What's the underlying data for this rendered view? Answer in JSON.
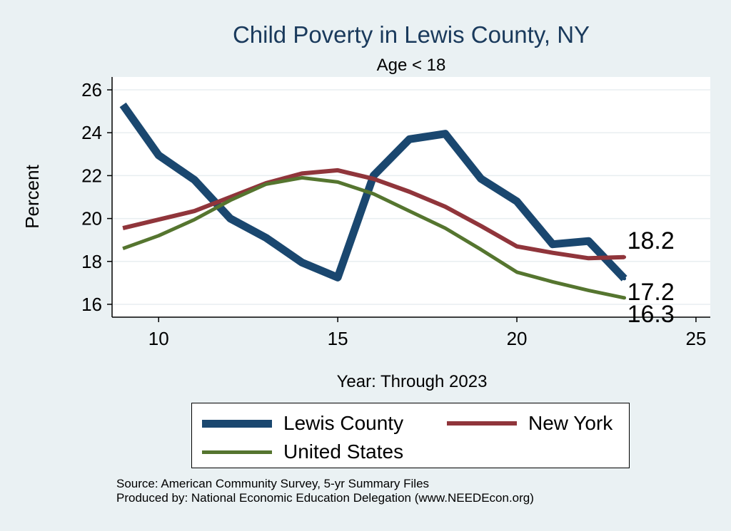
{
  "chart_data": {
    "type": "line",
    "title": "Child Poverty in Lewis County, NY",
    "subtitle": "Age < 18",
    "xlabel": "Year: Through 2023",
    "ylabel": "Percent",
    "xlim": [
      8.7,
      25.4
    ],
    "ylim": [
      15.4,
      26.6
    ],
    "xticks": [
      10,
      15,
      20,
      25
    ],
    "yticks": [
      16,
      18,
      20,
      22,
      24,
      26
    ],
    "grid": true,
    "x": [
      9,
      10,
      11,
      12,
      13,
      14,
      15,
      16,
      17,
      18,
      19,
      20,
      21,
      22,
      23
    ],
    "series": [
      {
        "name": "Lewis County",
        "color": "#1a476f",
        "width": 11,
        "values": [
          25.3,
          22.95,
          21.8,
          20.0,
          19.1,
          17.95,
          17.25,
          22.0,
          23.7,
          23.95,
          21.85,
          20.8,
          18.8,
          18.95,
          17.2
        ]
      },
      {
        "name": "New York",
        "color": "#90353b",
        "width": 6,
        "values": [
          19.55,
          19.95,
          20.35,
          21.0,
          21.65,
          22.1,
          22.25,
          21.85,
          21.25,
          20.55,
          19.65,
          18.7,
          18.4,
          18.15,
          18.2
        ]
      },
      {
        "name": "United States",
        "color": "#55752f",
        "width": 5,
        "values": [
          18.6,
          19.2,
          19.95,
          20.85,
          21.6,
          21.9,
          21.7,
          21.15,
          20.35,
          19.55,
          18.55,
          17.5,
          17.05,
          16.65,
          16.3
        ]
      }
    ],
    "end_labels": [
      {
        "series": "New York",
        "text": "18.2"
      },
      {
        "series": "Lewis County",
        "text": "17.2"
      },
      {
        "series": "United States",
        "text": "16.3"
      }
    ],
    "legend_position": "bottom"
  },
  "legend": {
    "items": [
      {
        "label": "Lewis County",
        "color": "#1a476f"
      },
      {
        "label": "New York",
        "color": "#90353b"
      },
      {
        "label": "United States",
        "color": "#55752f"
      }
    ]
  },
  "footer": {
    "source": "Source: American Community Survey, 5-yr Summary Files",
    "produced": "Produced by: National Economic Education Delegation (www.NEEDEcon.org)"
  }
}
